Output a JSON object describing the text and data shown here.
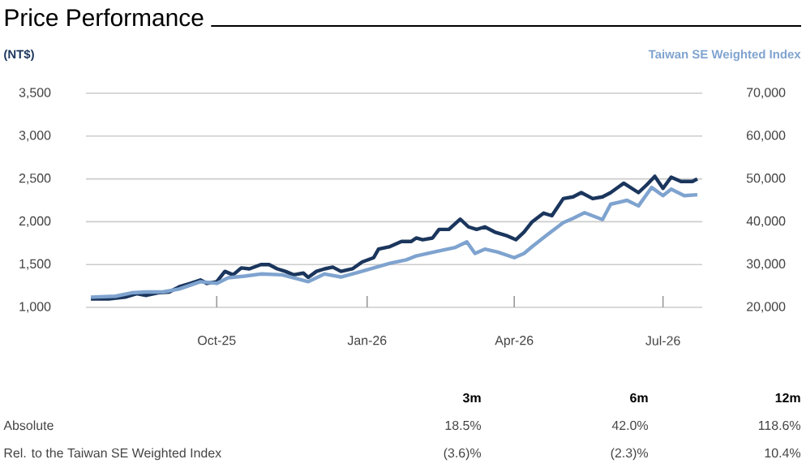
{
  "chart_data": {
    "type": "line",
    "title": "Price Performance",
    "xlim": [
      "2025-07-13",
      "2026-07-25"
    ],
    "xticks": [
      {
        "value": "2025-10-01",
        "label": "Oct-25"
      },
      {
        "value": "2026-01-01",
        "label": "Jan-26"
      },
      {
        "value": "2026-04-01",
        "label": "Apr-26"
      },
      {
        "value": "2026-07-01",
        "label": "Jul-26"
      }
    ],
    "ylim": [
      1000,
      3500
    ],
    "yticks": [
      {
        "value": 1000,
        "label": "1,000"
      },
      {
        "value": 1500,
        "label": "1,500"
      },
      {
        "value": 2000,
        "label": "2,000"
      },
      {
        "value": 2500,
        "label": "2,500"
      },
      {
        "value": 3000,
        "label": "3,000"
      },
      {
        "value": 3500,
        "label": "3,500"
      }
    ],
    "y2lim": [
      20000,
      70000
    ],
    "y2ticks": [
      {
        "value": 20000,
        "label": "20,000"
      },
      {
        "value": 30000,
        "label": "30,000"
      },
      {
        "value": 40000,
        "label": "40,000"
      },
      {
        "value": 50000,
        "label": "50,000"
      },
      {
        "value": 60000,
        "label": "60,000"
      },
      {
        "value": 70000,
        "label": "70,000"
      }
    ],
    "grid": "y",
    "series": [
      {
        "name": "Taiwan SE Weighted Index",
        "color": "#7fa3cf",
        "axis": "y2",
        "x": [
          "2025-07-16",
          "2025-07-31",
          "2025-08-10",
          "2025-08-19",
          "2025-08-29",
          "2025-09-08",
          "2025-09-21",
          "2025-10-01",
          "2025-10-08",
          "2025-10-18",
          "2025-10-28",
          "2025-11-10",
          "2025-11-20",
          "2025-11-26",
          "2025-12-06",
          "2025-12-16",
          "2025-12-26",
          "2026-01-05",
          "2026-01-15",
          "2026-01-25",
          "2026-01-31",
          "2026-02-14",
          "2026-02-24",
          "2026-03-03",
          "2026-03-08",
          "2026-03-14",
          "2026-03-22",
          "2026-04-01",
          "2026-04-07",
          "2026-04-12",
          "2026-04-21",
          "2026-05-01",
          "2026-05-07",
          "2026-05-14",
          "2026-05-25",
          "2026-05-30",
          "2026-06-09",
          "2026-06-16",
          "2026-06-24",
          "2026-07-01",
          "2026-07-06",
          "2026-07-14",
          "2026-07-22"
        ],
        "values": [
          22400,
          22600,
          23400,
          23600,
          23600,
          24300,
          26000,
          25600,
          26900,
          27300,
          27800,
          27600,
          26600,
          26000,
          27800,
          27100,
          28100,
          29200,
          30300,
          31100,
          32000,
          33200,
          34000,
          35300,
          32600,
          33600,
          32900,
          31600,
          32600,
          34200,
          36900,
          39800,
          40800,
          42100,
          40500,
          44100,
          45000,
          43700,
          48000,
          46100,
          47600,
          46100,
          46300
        ]
      },
      {
        "color": "#1b365d",
        "x": [
          "2025-07-16",
          "2025-07-27",
          "2025-08-06",
          "2025-08-13",
          "2025-08-19",
          "2025-08-26",
          "2025-09-02",
          "2025-09-08",
          "2025-09-15",
          "2025-09-21",
          "2025-09-25",
          "2025-10-01",
          "2025-10-06",
          "2025-10-11",
          "2025-10-16",
          "2025-10-21",
          "2025-10-28",
          "2025-11-02",
          "2025-11-07",
          "2025-11-12",
          "2025-11-17",
          "2025-11-23",
          "2025-11-26",
          "2025-12-01",
          "2025-12-06",
          "2025-12-11",
          "2025-12-16",
          "2025-12-23",
          "2025-12-29",
          "2026-01-05",
          "2026-01-08",
          "2026-01-15",
          "2026-01-22",
          "2026-01-28",
          "2026-01-31",
          "2026-02-04",
          "2026-02-10",
          "2026-02-14",
          "2026-02-20",
          "2026-02-27",
          "2026-03-04",
          "2026-03-09",
          "2026-03-14",
          "2026-03-20",
          "2026-03-27",
          "2026-04-02",
          "2026-04-07",
          "2026-04-12",
          "2026-04-19",
          "2026-04-24",
          "2026-05-01",
          "2026-05-07",
          "2026-05-12",
          "2026-05-19",
          "2026-05-25",
          "2026-05-30",
          "2026-06-07",
          "2026-06-16",
          "2026-06-21",
          "2026-06-26",
          "2026-07-01",
          "2026-07-06",
          "2026-07-12",
          "2026-07-19",
          "2026-07-22"
        ],
        "values": [
          1100,
          1100,
          1120,
          1160,
          1140,
          1170,
          1180,
          1240,
          1280,
          1320,
          1280,
          1300,
          1420,
          1380,
          1460,
          1450,
          1500,
          1500,
          1450,
          1420,
          1380,
          1400,
          1350,
          1420,
          1450,
          1470,
          1420,
          1450,
          1530,
          1580,
          1680,
          1710,
          1770,
          1770,
          1810,
          1790,
          1810,
          1910,
          1910,
          2030,
          1940,
          1910,
          1940,
          1880,
          1840,
          1790,
          1880,
          2000,
          2100,
          2070,
          2270,
          2290,
          2340,
          2270,
          2290,
          2340,
          2450,
          2340,
          2430,
          2530,
          2390,
          2520,
          2470,
          2470,
          2500
        ]
      }
    ],
    "annotations": [
      "(NT$)",
      "3m",
      "6m",
      "12m",
      "Absolute",
      "18.5%",
      "42.0%",
      "118.6%",
      "Rel. to the Taiwan SE Weighted Index",
      "(3.6)%",
      "(2.3)%",
      "10.4%"
    ]
  }
}
